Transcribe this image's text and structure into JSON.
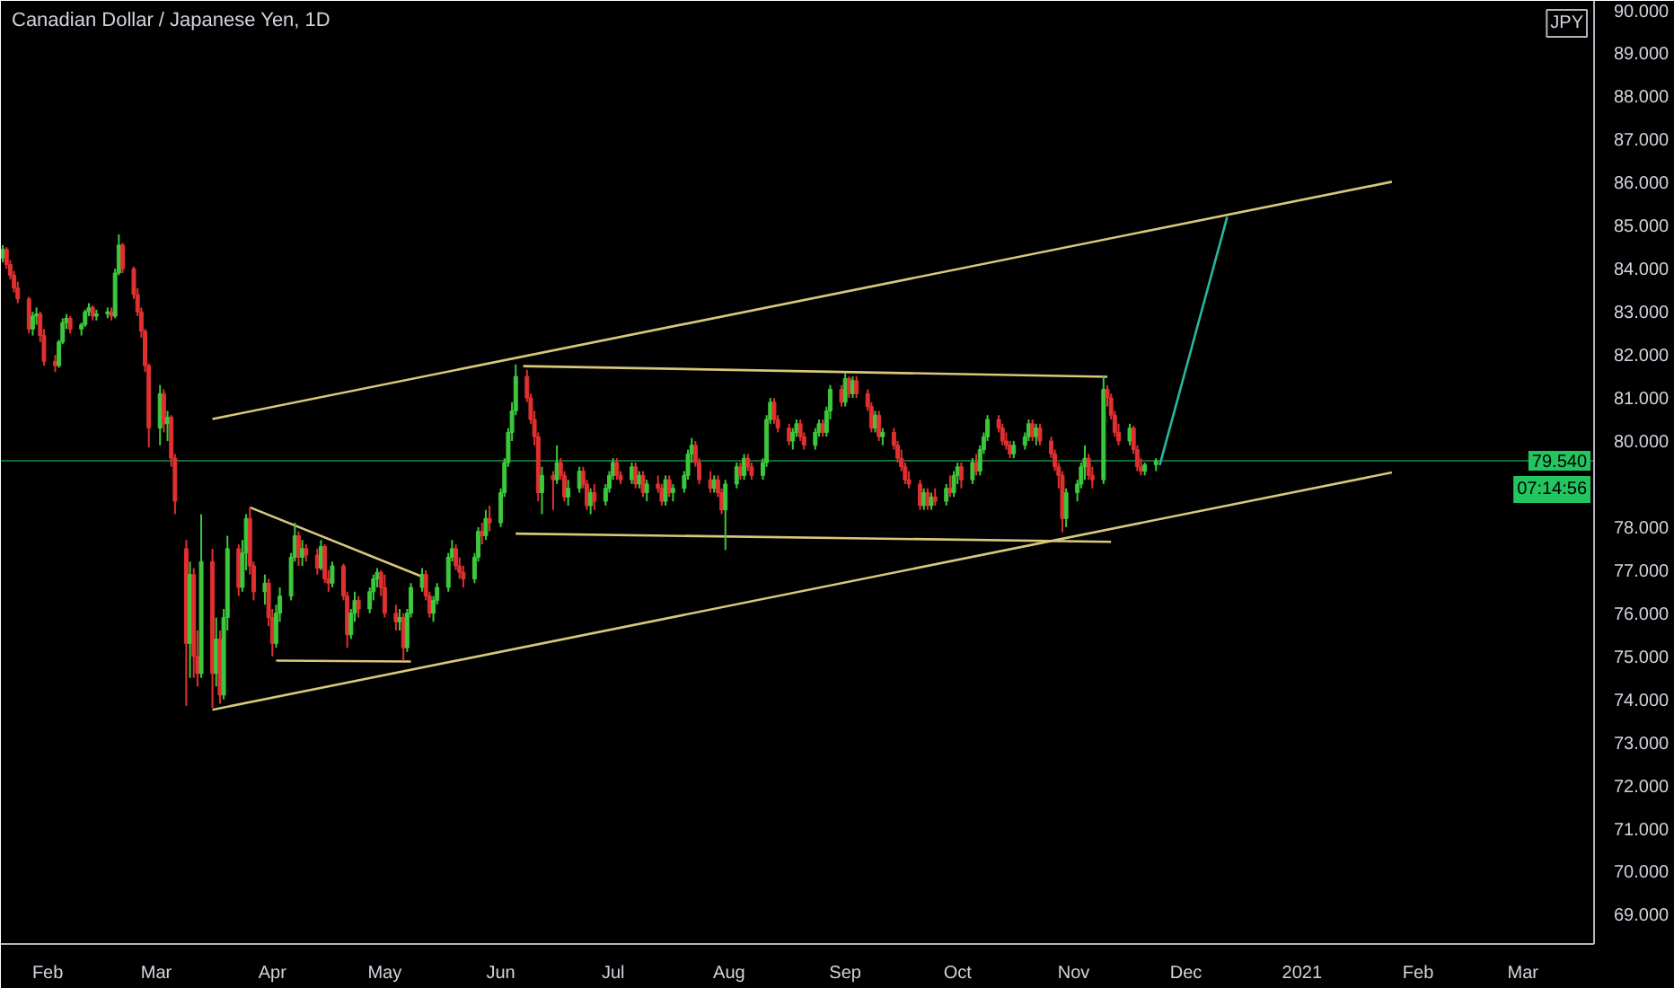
{
  "chart_data": {
    "type": "candlestick",
    "title": "Canadian Dollar / Japanese Yen, 1D",
    "ylabel": "JPY",
    "x": [
      "2020-01-20",
      "2020-01-21",
      "2020-01-22",
      "2020-01-23",
      "2020-01-24",
      "2020-01-27",
      "2020-01-28",
      "2020-01-29",
      "2020-01-30",
      "2020-01-31",
      "2020-02-03",
      "2020-02-04",
      "2020-02-05",
      "2020-02-06",
      "2020-02-07",
      "2020-02-10",
      "2020-02-11",
      "2020-02-12",
      "2020-02-13",
      "2020-02-14",
      "2020-02-17",
      "2020-02-18",
      "2020-02-19",
      "2020-02-20",
      "2020-02-21",
      "2020-02-24",
      "2020-02-25",
      "2020-02-26",
      "2020-02-27",
      "2020-02-28",
      "2020-03-02",
      "2020-03-03",
      "2020-03-04",
      "2020-03-05",
      "2020-03-06",
      "2020-03-09",
      "2020-03-10",
      "2020-03-11",
      "2020-03-12",
      "2020-03-13",
      "2020-03-16",
      "2020-03-17",
      "2020-03-18",
      "2020-03-19",
      "2020-03-20",
      "2020-03-23",
      "2020-03-24",
      "2020-03-25",
      "2020-03-26",
      "2020-03-27",
      "2020-03-30",
      "2020-03-31",
      "2020-04-01",
      "2020-04-02",
      "2020-04-03",
      "2020-04-06",
      "2020-04-07",
      "2020-04-08",
      "2020-04-09",
      "2020-04-10",
      "2020-04-13",
      "2020-04-14",
      "2020-04-15",
      "2020-04-16",
      "2020-04-17",
      "2020-04-20",
      "2020-04-21",
      "2020-04-22",
      "2020-04-23",
      "2020-04-24",
      "2020-04-27",
      "2020-04-28",
      "2020-04-29",
      "2020-04-30",
      "2020-05-01",
      "2020-05-04",
      "2020-05-05",
      "2020-05-06",
      "2020-05-07",
      "2020-05-08",
      "2020-05-11",
      "2020-05-12",
      "2020-05-13",
      "2020-05-14",
      "2020-05-15",
      "2020-05-18",
      "2020-05-19",
      "2020-05-20",
      "2020-05-21",
      "2020-05-22",
      "2020-05-25",
      "2020-05-26",
      "2020-05-27",
      "2020-05-28",
      "2020-05-29",
      "2020-06-01",
      "2020-06-02",
      "2020-06-03",
      "2020-06-04",
      "2020-06-05",
      "2020-06-08",
      "2020-06-09",
      "2020-06-10",
      "2020-06-11",
      "2020-06-12",
      "2020-06-15",
      "2020-06-16",
      "2020-06-17",
      "2020-06-18",
      "2020-06-19",
      "2020-06-22",
      "2020-06-23",
      "2020-06-24",
      "2020-06-25",
      "2020-06-26",
      "2020-06-29",
      "2020-06-30",
      "2020-07-01",
      "2020-07-02",
      "2020-07-03",
      "2020-07-06",
      "2020-07-07",
      "2020-07-08",
      "2020-07-09",
      "2020-07-10",
      "2020-07-13",
      "2020-07-14",
      "2020-07-15",
      "2020-07-16",
      "2020-07-17",
      "2020-07-20",
      "2020-07-21",
      "2020-07-22",
      "2020-07-23",
      "2020-07-24",
      "2020-07-27",
      "2020-07-28",
      "2020-07-29",
      "2020-07-30",
      "2020-07-31",
      "2020-08-03",
      "2020-08-04",
      "2020-08-05",
      "2020-08-06",
      "2020-08-07",
      "2020-08-10",
      "2020-08-11",
      "2020-08-12",
      "2020-08-13",
      "2020-08-14",
      "2020-08-17",
      "2020-08-18",
      "2020-08-19",
      "2020-08-20",
      "2020-08-21",
      "2020-08-24",
      "2020-08-25",
      "2020-08-26",
      "2020-08-27",
      "2020-08-28",
      "2020-08-31",
      "2020-09-01",
      "2020-09-02",
      "2020-09-03",
      "2020-09-04",
      "2020-09-07",
      "2020-09-08",
      "2020-09-09",
      "2020-09-10",
      "2020-09-11",
      "2020-09-14",
      "2020-09-15",
      "2020-09-16",
      "2020-09-17",
      "2020-09-18",
      "2020-09-21",
      "2020-09-22",
      "2020-09-23",
      "2020-09-24",
      "2020-09-25",
      "2020-09-28",
      "2020-09-29",
      "2020-09-30",
      "2020-10-01",
      "2020-10-02",
      "2020-10-05",
      "2020-10-06",
      "2020-10-07",
      "2020-10-08",
      "2020-10-09",
      "2020-10-12",
      "2020-10-13",
      "2020-10-14",
      "2020-10-15",
      "2020-10-16",
      "2020-10-19",
      "2020-10-20",
      "2020-10-21",
      "2020-10-22",
      "2020-10-23",
      "2020-10-26",
      "2020-10-27",
      "2020-10-28",
      "2020-10-29",
      "2020-10-30",
      "2020-11-02",
      "2020-11-03",
      "2020-11-04",
      "2020-11-05",
      "2020-11-06",
      "2020-11-09",
      "2020-11-10",
      "2020-11-11",
      "2020-11-12",
      "2020-11-13",
      "2020-11-16",
      "2020-11-17",
      "2020-11-18",
      "2020-11-19",
      "2020-11-20",
      "2020-11-23"
    ],
    "ohlc": [
      [
        84.25,
        84.55,
        84.15,
        84.45
      ],
      [
        84.45,
        84.5,
        84.0,
        84.1
      ],
      [
        84.1,
        84.2,
        83.75,
        83.85
      ],
      [
        83.85,
        83.95,
        83.45,
        83.55
      ],
      [
        83.55,
        83.7,
        83.2,
        83.3
      ],
      [
        83.3,
        83.35,
        82.5,
        82.6
      ],
      [
        82.6,
        83.0,
        82.45,
        82.9
      ],
      [
        82.9,
        83.1,
        82.7,
        82.95
      ],
      [
        82.95,
        83.0,
        82.3,
        82.45
      ],
      [
        82.45,
        82.6,
        81.75,
        81.85
      ],
      [
        81.85,
        82.0,
        81.6,
        81.75
      ],
      [
        81.75,
        82.35,
        81.7,
        82.3
      ],
      [
        82.3,
        82.85,
        82.25,
        82.75
      ],
      [
        82.75,
        82.95,
        82.6,
        82.85
      ],
      [
        82.85,
        82.9,
        82.5,
        82.6
      ],
      [
        82.6,
        82.75,
        82.45,
        82.7
      ],
      [
        82.7,
        83.05,
        82.65,
        83.0
      ],
      [
        83.0,
        83.2,
        82.9,
        83.1
      ],
      [
        83.1,
        83.15,
        82.8,
        82.9
      ],
      [
        82.9,
        83.05,
        82.8,
        82.95
      ],
      [
        82.95,
        83.1,
        82.85,
        83.0
      ],
      [
        83.0,
        83.1,
        82.8,
        82.9
      ],
      [
        82.9,
        84.0,
        82.85,
        83.9
      ],
      [
        83.9,
        84.8,
        83.85,
        84.55
      ],
      [
        84.55,
        84.6,
        83.9,
        84.0
      ],
      [
        84.0,
        84.05,
        83.3,
        83.4
      ],
      [
        83.4,
        83.55,
        82.9,
        83.0
      ],
      [
        83.0,
        83.1,
        82.4,
        82.55
      ],
      [
        82.55,
        82.6,
        81.6,
        81.75
      ],
      [
        81.75,
        81.8,
        79.85,
        80.3
      ],
      [
        80.3,
        81.3,
        79.9,
        81.1
      ],
      [
        81.1,
        81.2,
        80.2,
        80.4
      ],
      [
        80.4,
        80.7,
        80.0,
        80.55
      ],
      [
        80.55,
        80.6,
        79.4,
        79.6
      ],
      [
        79.6,
        79.7,
        78.3,
        78.6
      ],
      [
        77.5,
        77.7,
        73.85,
        75.3
      ],
      [
        75.3,
        77.2,
        74.5,
        76.9
      ],
      [
        76.9,
        77.05,
        74.5,
        75.0
      ],
      [
        75.0,
        75.6,
        74.3,
        74.6
      ],
      [
        74.6,
        78.3,
        74.5,
        77.2
      ],
      [
        77.2,
        77.5,
        73.8,
        74.6
      ],
      [
        74.6,
        75.9,
        74.3,
        75.4
      ],
      [
        75.4,
        75.6,
        73.9,
        74.1
      ],
      [
        74.1,
        76.1,
        74.0,
        75.9
      ],
      [
        75.9,
        77.8,
        75.6,
        77.5
      ],
      [
        77.5,
        77.6,
        76.4,
        76.6
      ],
      [
        76.6,
        77.7,
        76.5,
        77.4
      ],
      [
        77.4,
        78.3,
        77.0,
        78.2
      ],
      [
        78.2,
        78.46,
        76.9,
        77.1
      ],
      [
        77.1,
        77.2,
        76.3,
        76.5
      ],
      [
        76.5,
        76.9,
        76.2,
        76.7
      ],
      [
        76.7,
        76.8,
        75.7,
        75.9
      ],
      [
        75.9,
        76.1,
        75.0,
        75.3
      ],
      [
        75.3,
        76.2,
        75.2,
        76.0
      ],
      [
        76.0,
        76.6,
        75.8,
        76.4
      ],
      [
        76.4,
        77.4,
        76.3,
        77.3
      ],
      [
        77.3,
        78.1,
        77.2,
        77.8
      ],
      [
        77.8,
        77.9,
        77.1,
        77.3
      ],
      [
        77.3,
        77.7,
        77.1,
        77.5
      ],
      [
        77.5,
        77.6,
        77.2,
        77.35
      ],
      [
        77.35,
        77.5,
        76.9,
        77.05
      ],
      [
        77.05,
        77.7,
        77.0,
        77.55
      ],
      [
        77.55,
        77.6,
        76.7,
        76.8
      ],
      [
        76.8,
        77.0,
        76.5,
        76.7
      ],
      [
        76.7,
        77.2,
        76.6,
        77.1
      ],
      [
        77.1,
        77.15,
        76.3,
        76.4
      ],
      [
        76.4,
        76.5,
        75.2,
        75.5
      ],
      [
        75.5,
        76.1,
        75.4,
        76.0
      ],
      [
        76.0,
        76.5,
        75.8,
        76.3
      ],
      [
        76.3,
        76.4,
        75.9,
        76.1
      ],
      [
        76.1,
        76.6,
        76.0,
        76.5
      ],
      [
        76.5,
        76.9,
        76.3,
        76.8
      ],
      [
        76.8,
        77.05,
        76.6,
        76.95
      ],
      [
        76.95,
        77.0,
        76.4,
        76.6
      ],
      [
        76.6,
        76.9,
        75.9,
        76.0
      ],
      [
        76.0,
        76.2,
        75.6,
        75.8
      ],
      [
        75.8,
        76.1,
        75.6,
        75.9
      ],
      [
        75.9,
        76.0,
        74.9,
        75.2
      ],
      [
        75.2,
        76.1,
        75.1,
        76.0
      ],
      [
        76.0,
        76.7,
        75.9,
        76.6
      ],
      [
        76.6,
        77.05,
        76.5,
        76.9
      ],
      [
        76.9,
        77.0,
        76.3,
        76.4
      ],
      [
        76.4,
        76.5,
        75.9,
        76.0
      ],
      [
        76.0,
        76.4,
        75.8,
        76.3
      ],
      [
        76.3,
        76.7,
        76.2,
        76.6
      ],
      [
        76.6,
        77.4,
        76.5,
        77.3
      ],
      [
        77.3,
        77.7,
        77.2,
        77.5
      ],
      [
        77.5,
        77.6,
        77.0,
        77.1
      ],
      [
        77.1,
        77.3,
        76.8,
        76.95
      ],
      [
        76.95,
        77.1,
        76.6,
        76.8
      ],
      [
        76.8,
        77.4,
        76.7,
        77.3
      ],
      [
        77.3,
        78.0,
        77.2,
        77.9
      ],
      [
        77.9,
        78.1,
        77.6,
        77.8
      ],
      [
        77.8,
        78.4,
        77.7,
        78.2
      ],
      [
        78.2,
        78.5,
        77.9,
        78.1
      ],
      [
        78.1,
        78.9,
        78.0,
        78.8
      ],
      [
        78.8,
        79.6,
        78.7,
        79.5
      ],
      [
        79.5,
        80.3,
        79.4,
        80.2
      ],
      [
        80.2,
        80.9,
        80.0,
        80.7
      ],
      [
        80.7,
        81.78,
        80.6,
        81.5
      ],
      [
        81.5,
        81.65,
        80.9,
        81.0
      ],
      [
        81.0,
        81.1,
        80.4,
        80.5
      ],
      [
        80.5,
        80.7,
        79.9,
        80.1
      ],
      [
        80.1,
        80.2,
        78.6,
        78.8
      ],
      [
        78.8,
        79.4,
        78.3,
        79.2
      ],
      [
        79.2,
        79.3,
        78.4,
        79.1
      ],
      [
        79.1,
        79.9,
        79.0,
        79.5
      ],
      [
        79.5,
        79.6,
        79.1,
        79.2
      ],
      [
        79.2,
        79.3,
        78.6,
        78.7
      ],
      [
        78.7,
        79.1,
        78.5,
        78.9
      ],
      [
        78.9,
        79.4,
        78.8,
        79.3
      ],
      [
        79.3,
        79.4,
        78.9,
        79.0
      ],
      [
        79.0,
        79.1,
        78.4,
        78.5
      ],
      [
        78.5,
        78.9,
        78.3,
        78.8
      ],
      [
        78.8,
        79.0,
        78.4,
        78.6
      ],
      [
        78.6,
        79.0,
        78.5,
        78.9
      ],
      [
        78.9,
        79.3,
        78.8,
        79.2
      ],
      [
        79.2,
        79.6,
        79.1,
        79.5
      ],
      [
        79.5,
        79.6,
        79.1,
        79.2
      ],
      [
        79.2,
        79.3,
        79.0,
        79.1
      ],
      [
        79.1,
        79.5,
        79.0,
        79.4
      ],
      [
        79.4,
        79.5,
        78.9,
        79.0
      ],
      [
        79.0,
        79.3,
        78.9,
        79.2
      ],
      [
        79.2,
        79.3,
        78.7,
        78.8
      ],
      [
        78.8,
        79.1,
        78.6,
        79.0
      ],
      [
        79.0,
        79.2,
        78.8,
        78.9
      ],
      [
        78.9,
        79.0,
        78.5,
        78.6
      ],
      [
        78.6,
        79.2,
        78.5,
        79.1
      ],
      [
        79.1,
        79.2,
        78.7,
        78.8
      ],
      [
        78.8,
        79.0,
        78.6,
        78.9
      ],
      [
        78.9,
        79.3,
        78.8,
        79.2
      ],
      [
        79.2,
        79.8,
        79.1,
        79.7
      ],
      [
        79.7,
        80.07,
        79.5,
        79.9
      ],
      [
        79.9,
        80.0,
        79.4,
        79.5
      ],
      [
        79.5,
        79.6,
        79.0,
        79.1
      ],
      [
        79.1,
        79.3,
        78.8,
        78.9
      ],
      [
        78.9,
        79.2,
        78.8,
        79.1
      ],
      [
        79.1,
        79.2,
        78.7,
        78.8
      ],
      [
        78.8,
        78.9,
        78.3,
        78.4
      ],
      [
        78.4,
        79.1,
        77.47,
        79.0
      ],
      [
        79.0,
        79.5,
        78.9,
        79.4
      ],
      [
        79.4,
        79.5,
        79.1,
        79.2
      ],
      [
        79.2,
        79.7,
        79.1,
        79.6
      ],
      [
        79.6,
        79.7,
        79.3,
        79.4
      ],
      [
        79.4,
        79.5,
        79.1,
        79.2
      ],
      [
        79.2,
        79.6,
        79.1,
        79.5
      ],
      [
        79.5,
        80.6,
        79.4,
        80.5
      ],
      [
        80.5,
        81.0,
        80.4,
        80.9
      ],
      [
        80.9,
        81.0,
        80.4,
        80.5
      ],
      [
        80.5,
        80.6,
        80.2,
        80.3
      ],
      [
        80.3,
        80.4,
        79.9,
        80.0
      ],
      [
        80.0,
        80.3,
        79.8,
        80.2
      ],
      [
        80.2,
        80.5,
        80.1,
        80.4
      ],
      [
        80.4,
        80.5,
        80.0,
        80.1
      ],
      [
        80.1,
        80.2,
        79.8,
        79.9
      ],
      [
        79.9,
        80.3,
        79.8,
        80.2
      ],
      [
        80.2,
        80.5,
        80.1,
        80.4
      ],
      [
        80.4,
        80.5,
        80.1,
        80.2
      ],
      [
        80.2,
        80.8,
        80.1,
        80.7
      ],
      [
        80.7,
        81.3,
        80.5,
        81.2
      ],
      [
        81.2,
        81.3,
        80.8,
        80.9
      ],
      [
        80.9,
        81.58,
        80.8,
        81.45
      ],
      [
        81.45,
        81.5,
        81.0,
        81.1
      ],
      [
        81.1,
        81.5,
        81.0,
        81.4
      ],
      [
        81.4,
        81.5,
        81.0,
        81.1
      ],
      [
        81.1,
        81.2,
        80.7,
        80.8
      ],
      [
        80.8,
        80.9,
        80.2,
        80.3
      ],
      [
        80.3,
        80.7,
        80.2,
        80.6
      ],
      [
        80.6,
        80.7,
        80.0,
        80.1
      ],
      [
        80.1,
        80.3,
        79.9,
        80.2
      ],
      [
        80.2,
        80.3,
        79.8,
        79.9
      ],
      [
        79.9,
        80.0,
        79.5,
        79.6
      ],
      [
        79.6,
        79.8,
        79.3,
        79.4
      ],
      [
        79.4,
        79.5,
        79.0,
        79.1
      ],
      [
        79.1,
        79.3,
        78.9,
        79.0
      ],
      [
        79.0,
        79.1,
        78.4,
        78.5
      ],
      [
        78.5,
        78.9,
        78.4,
        78.8
      ],
      [
        78.8,
        78.9,
        78.4,
        78.5
      ],
      [
        78.5,
        78.8,
        78.4,
        78.7
      ],
      [
        78.7,
        78.9,
        78.5,
        78.6
      ],
      [
        78.6,
        79.0,
        78.5,
        78.9
      ],
      [
        78.9,
        79.2,
        78.7,
        78.8
      ],
      [
        78.8,
        79.3,
        78.7,
        79.2
      ],
      [
        79.2,
        79.5,
        79.0,
        79.4
      ],
      [
        79.4,
        79.5,
        78.9,
        79.1
      ],
      [
        79.1,
        79.6,
        79.0,
        79.5
      ],
      [
        79.5,
        79.7,
        79.2,
        79.3
      ],
      [
        79.3,
        79.9,
        79.2,
        79.8
      ],
      [
        79.8,
        80.2,
        79.7,
        80.1
      ],
      [
        80.1,
        80.6,
        80.0,
        80.5
      ],
      [
        80.5,
        80.6,
        80.2,
        80.3
      ],
      [
        80.3,
        80.4,
        79.9,
        80.0
      ],
      [
        80.0,
        80.2,
        79.8,
        79.9
      ],
      [
        79.9,
        80.0,
        79.6,
        79.7
      ],
      [
        79.7,
        80.0,
        79.6,
        79.9
      ],
      [
        79.9,
        80.2,
        79.8,
        80.1
      ],
      [
        80.1,
        80.5,
        80.0,
        80.4
      ],
      [
        80.4,
        80.5,
        80.0,
        80.1
      ],
      [
        80.1,
        80.4,
        79.9,
        80.3
      ],
      [
        80.3,
        80.4,
        79.9,
        80.0
      ],
      [
        80.0,
        80.1,
        79.6,
        79.7
      ],
      [
        79.7,
        79.8,
        79.3,
        79.4
      ],
      [
        79.4,
        79.5,
        78.9,
        79.2
      ],
      [
        79.2,
        79.3,
        77.88,
        78.2
      ],
      [
        78.2,
        78.9,
        78.0,
        78.8
      ],
      [
        78.8,
        79.1,
        78.6,
        79.0
      ],
      [
        79.0,
        79.5,
        78.9,
        79.4
      ],
      [
        79.4,
        79.9,
        79.1,
        79.6
      ],
      [
        79.6,
        79.7,
        79.1,
        79.2
      ],
      [
        79.2,
        79.4,
        78.9,
        79.1
      ],
      [
        79.1,
        81.5,
        79.0,
        81.2
      ],
      [
        81.2,
        81.3,
        80.8,
        81.0
      ],
      [
        81.0,
        81.1,
        80.5,
        80.6
      ],
      [
        80.6,
        80.7,
        80.1,
        80.2
      ],
      [
        80.2,
        80.4,
        79.9,
        80.0
      ],
      [
        80.0,
        80.4,
        79.9,
        80.3
      ],
      [
        80.3,
        80.35,
        79.7,
        79.8
      ],
      [
        79.8,
        79.9,
        79.3,
        79.4
      ],
      [
        79.4,
        79.6,
        79.2,
        79.3
      ],
      [
        79.3,
        79.5,
        79.2,
        79.45
      ],
      [
        79.45,
        79.6,
        79.3,
        79.54
      ]
    ],
    "series": [
      {
        "type": "line",
        "color": "#d9c77a",
        "x": [
          "2020-03-16",
          "2021-01-25"
        ],
        "values": [
          80.51,
          86.02
        ]
      },
      {
        "type": "line",
        "color": "#d9c77a",
        "x": [
          "2020-03-16",
          "2021-01-25"
        ],
        "values": [
          73.76,
          79.27
        ]
      },
      {
        "type": "line",
        "color": "#d9c77a",
        "x": [
          "2020-06-07",
          "2020-11-10"
        ],
        "values": [
          81.74,
          81.49
        ]
      },
      {
        "type": "line",
        "color": "#d9c77a",
        "x": [
          "2020-06-05",
          "2020-11-11"
        ],
        "values": [
          77.85,
          77.66
        ]
      },
      {
        "type": "line",
        "color": "#d9c77a",
        "x": [
          "2020-03-26",
          "2020-05-11"
        ],
        "values": [
          78.46,
          76.85
        ]
      },
      {
        "type": "line",
        "color": "#d9c77a",
        "x": [
          "2020-04-02",
          "2020-05-08"
        ],
        "values": [
          74.9,
          74.88
        ]
      },
      {
        "type": "line",
        "color": "#2ab7a0",
        "x": [
          "2020-11-24",
          "2020-12-12"
        ],
        "values": [
          79.44,
          85.2
        ]
      }
    ],
    "ref_lines": [
      {
        "axis": "y",
        "value": 79.54,
        "label": "79.540",
        "color": "#22c55e"
      }
    ],
    "annotations": [
      "07:14:56"
    ],
    "xlim": [
      "2020-01-19T12:00",
      "2021-03-20"
    ],
    "xticks": [
      {
        "value": "2020-02-01",
        "label": "Feb"
      },
      {
        "value": "2020-03-01",
        "label": "Mar"
      },
      {
        "value": "2020-04-01",
        "label": "Apr"
      },
      {
        "value": "2020-05-01",
        "label": "May"
      },
      {
        "value": "2020-06-01",
        "label": "Jun"
      },
      {
        "value": "2020-07-01",
        "label": "Jul"
      },
      {
        "value": "2020-08-01",
        "label": "Aug"
      },
      {
        "value": "2020-09-01",
        "label": "Sep"
      },
      {
        "value": "2020-10-01",
        "label": "Oct"
      },
      {
        "value": "2020-11-01",
        "label": "Nov"
      },
      {
        "value": "2020-12-01",
        "label": "Dec"
      },
      {
        "value": "2021-01-01",
        "label": "2021"
      },
      {
        "value": "2021-02-01",
        "label": "Feb"
      },
      {
        "value": "2021-03-01",
        "label": "Mar"
      }
    ],
    "ylim": [
      68.32,
      90.22
    ],
    "yticks": [
      {
        "value": 69,
        "label": "69.000"
      },
      {
        "value": 70,
        "label": "70.000"
      },
      {
        "value": 71,
        "label": "71.000"
      },
      {
        "value": 72,
        "label": "72.000"
      },
      {
        "value": 73,
        "label": "73.000"
      },
      {
        "value": 74,
        "label": "74.000"
      },
      {
        "value": 75,
        "label": "75.000"
      },
      {
        "value": 76,
        "label": "76.000"
      },
      {
        "value": 77,
        "label": "77.000"
      },
      {
        "value": 78,
        "label": "78.000"
      },
      {
        "value": 80,
        "label": "80.000"
      },
      {
        "value": 81,
        "label": "81.000"
      },
      {
        "value": 82,
        "label": "82.000"
      },
      {
        "value": 83,
        "label": "83.000"
      },
      {
        "value": 84,
        "label": "84.000"
      },
      {
        "value": 85,
        "label": "85.000"
      },
      {
        "value": 86,
        "label": "86.000"
      },
      {
        "value": 87,
        "label": "87.000"
      },
      {
        "value": 88,
        "label": "88.000"
      },
      {
        "value": 89,
        "label": "89.000"
      },
      {
        "value": 90,
        "label": "90.000"
      }
    ]
  }
}
